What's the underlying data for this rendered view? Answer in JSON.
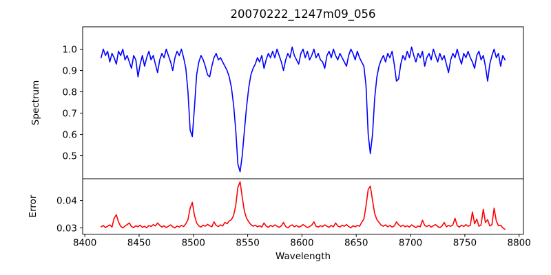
{
  "chart_data": {
    "type": "line",
    "title": "20070222_1247m09_056",
    "xlabel": "Wavelength",
    "xlim": [
      8398,
      8804
    ],
    "xticks": [
      8400,
      8450,
      8500,
      8550,
      8600,
      8650,
      8700,
      8750,
      8800
    ],
    "xtick_labels": [
      "8400",
      "8450",
      "8500",
      "8550",
      "8600",
      "8650",
      "8700",
      "8750",
      "8800"
    ],
    "grid": false,
    "legend": "none",
    "background_color": "#ffffff",
    "panels": [
      {
        "name": "spectrum",
        "ylabel": "Spectrum",
        "ylim": [
          0.392,
          1.105
        ],
        "yticks": [
          0.5,
          0.6,
          0.7,
          0.8,
          0.9,
          1.0
        ],
        "ytick_labels": [
          "0.5",
          "0.6",
          "0.7",
          "0.8",
          "0.9",
          "1.0"
        ],
        "line_color": "#0000ff",
        "absorption_line_centers": [
          8498,
          8542,
          8662
        ],
        "series": {
          "x_start": 8415,
          "x_step": 2,
          "values": [
            0.96,
            1.0,
            0.97,
            0.99,
            0.94,
            0.98,
            0.96,
            0.93,
            0.99,
            0.97,
            1.0,
            0.95,
            0.97,
            0.94,
            0.91,
            0.97,
            0.95,
            0.87,
            0.93,
            0.97,
            0.92,
            0.96,
            0.99,
            0.95,
            0.97,
            0.93,
            0.89,
            0.95,
            0.98,
            0.96,
            1.0,
            0.97,
            0.94,
            0.9,
            0.96,
            0.99,
            0.97,
            1.0,
            0.96,
            0.91,
            0.8,
            0.62,
            0.59,
            0.73,
            0.88,
            0.94,
            0.97,
            0.95,
            0.92,
            0.88,
            0.87,
            0.92,
            0.96,
            0.98,
            0.95,
            0.96,
            0.94,
            0.92,
            0.9,
            0.87,
            0.82,
            0.74,
            0.62,
            0.46,
            0.425,
            0.5,
            0.62,
            0.73,
            0.82,
            0.88,
            0.91,
            0.93,
            0.96,
            0.94,
            0.97,
            0.91,
            0.95,
            0.98,
            0.96,
            0.99,
            0.96,
            1.0,
            0.97,
            0.94,
            0.9,
            0.95,
            0.98,
            0.96,
            1.01,
            0.97,
            0.95,
            0.93,
            0.98,
            1.0,
            0.96,
            0.99,
            0.95,
            0.97,
            1.0,
            0.96,
            0.98,
            0.95,
            0.94,
            0.91,
            0.97,
            0.99,
            0.96,
            1.0,
            0.97,
            0.95,
            0.98,
            0.96,
            0.94,
            0.92,
            0.97,
            1.0,
            0.98,
            0.95,
            0.99,
            0.96,
            0.94,
            0.92,
            0.83,
            0.6,
            0.51,
            0.6,
            0.77,
            0.87,
            0.92,
            0.95,
            0.97,
            0.94,
            0.98,
            0.96,
            0.99,
            0.93,
            0.85,
            0.86,
            0.93,
            0.97,
            0.95,
            0.99,
            0.96,
            1.01,
            0.97,
            0.94,
            0.98,
            0.96,
            0.99,
            0.92,
            0.96,
            0.98,
            0.95,
            1.0,
            0.97,
            0.94,
            0.98,
            0.95,
            0.97,
            0.93,
            0.89,
            0.95,
            0.98,
            0.96,
            1.0,
            0.96,
            0.93,
            0.98,
            0.96,
            0.99,
            0.96,
            0.94,
            0.91,
            0.97,
            0.99,
            0.95,
            0.97,
            0.92,
            0.85,
            0.93,
            0.97,
            1.0,
            0.96,
            0.98,
            0.92,
            0.97,
            0.95
          ]
        }
      },
      {
        "name": "error",
        "ylabel": "Error",
        "ylim": [
          0.0277,
          0.0479
        ],
        "yticks": [
          0.03,
          0.04
        ],
        "ytick_labels": [
          "0.03",
          "0.04"
        ],
        "line_color": "#ff0000",
        "series": {
          "x_start": 8415,
          "x_step": 2,
          "values": [
            0.0304,
            0.0309,
            0.0301,
            0.0306,
            0.0311,
            0.0303,
            0.0335,
            0.0348,
            0.0322,
            0.0306,
            0.03,
            0.0307,
            0.0312,
            0.0318,
            0.0305,
            0.0301,
            0.0308,
            0.0304,
            0.031,
            0.0302,
            0.0306,
            0.03,
            0.0309,
            0.0305,
            0.0312,
            0.0307,
            0.0318,
            0.0309,
            0.0303,
            0.0308,
            0.0301,
            0.0306,
            0.0311,
            0.0304,
            0.03,
            0.0307,
            0.0303,
            0.0309,
            0.0305,
            0.0315,
            0.033,
            0.0372,
            0.0393,
            0.0345,
            0.0318,
            0.0307,
            0.0303,
            0.031,
            0.0306,
            0.0313,
            0.0308,
            0.0304,
            0.0322,
            0.0309,
            0.0305,
            0.0311,
            0.0307,
            0.032,
            0.0315,
            0.0325,
            0.033,
            0.0345,
            0.0382,
            0.0448,
            0.0468,
            0.0412,
            0.036,
            0.0335,
            0.0322,
            0.0312,
            0.0306,
            0.031,
            0.0304,
            0.0308,
            0.0303,
            0.0318,
            0.0307,
            0.0302,
            0.0309,
            0.0305,
            0.0311,
            0.0306,
            0.0302,
            0.0308,
            0.032,
            0.0305,
            0.03,
            0.0307,
            0.0311,
            0.0304,
            0.0309,
            0.0303,
            0.0306,
            0.0312,
            0.0307,
            0.0301,
            0.0305,
            0.031,
            0.0322,
            0.0306,
            0.0303,
            0.0308,
            0.0305,
            0.0311,
            0.0306,
            0.0302,
            0.0309,
            0.0304,
            0.0318,
            0.0307,
            0.0303,
            0.031,
            0.0306,
            0.0312,
            0.0305,
            0.03,
            0.0308,
            0.0304,
            0.0309,
            0.0306,
            0.032,
            0.0332,
            0.038,
            0.044,
            0.0452,
            0.04,
            0.0352,
            0.033,
            0.032,
            0.031,
            0.0306,
            0.0311,
            0.0304,
            0.0309,
            0.0303,
            0.0307,
            0.0322,
            0.0312,
            0.0305,
            0.031,
            0.0304,
            0.0308,
            0.0303,
            0.0311,
            0.0306,
            0.0301,
            0.0307,
            0.0304,
            0.0328,
            0.0309,
            0.0305,
            0.031,
            0.0303,
            0.0308,
            0.0312,
            0.0305,
            0.0301,
            0.0307,
            0.032,
            0.0304,
            0.0309,
            0.0306,
            0.0311,
            0.0335,
            0.0308,
            0.0303,
            0.031,
            0.0305,
            0.0312,
            0.0306,
            0.0309,
            0.0358,
            0.0315,
            0.0332,
            0.0306,
            0.0311,
            0.0368,
            0.032,
            0.033,
            0.0307,
            0.0312,
            0.0372,
            0.0325,
            0.0308,
            0.031,
            0.03,
            0.0295
          ]
        }
      }
    ]
  }
}
